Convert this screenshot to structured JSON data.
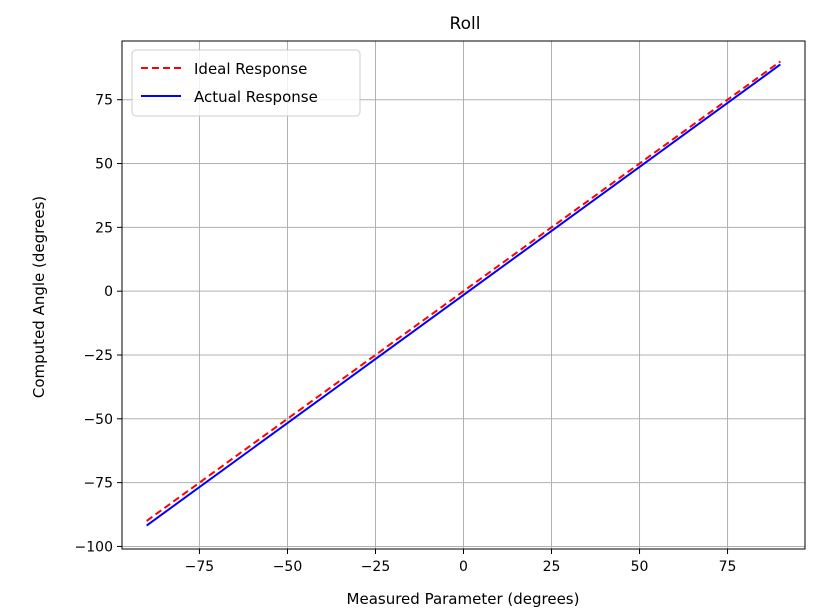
{
  "chart_data": {
    "type": "line",
    "title": "Roll",
    "xlabel": "Measured Parameter (degrees)",
    "ylabel": "Computed Angle (degrees)",
    "xlim": [
      -97,
      97
    ],
    "ylim": [
      -101,
      98
    ],
    "x_ticks": [
      -75,
      -50,
      -25,
      0,
      25,
      50,
      75
    ],
    "y_ticks": [
      -100,
      -75,
      -50,
      -25,
      0,
      25,
      50,
      75
    ],
    "x_tick_labels": [
      "−75",
      "−50",
      "−25",
      "0",
      "25",
      "50",
      "75"
    ],
    "y_tick_labels": [
      "−100",
      "−75",
      "−50",
      "−25",
      "0",
      "25",
      "50",
      "75"
    ],
    "grid": true,
    "legend_position": "top-left",
    "series": [
      {
        "name": "Ideal Response",
        "color": "#ff0000",
        "style": "dashed",
        "x": [
          -90,
          90
        ],
        "y": [
          -90,
          90
        ]
      },
      {
        "name": "Actual Response",
        "color": "#0000ff",
        "style": "solid",
        "x": [
          -90,
          90
        ],
        "y": [
          -91.8,
          88.8
        ]
      }
    ]
  }
}
